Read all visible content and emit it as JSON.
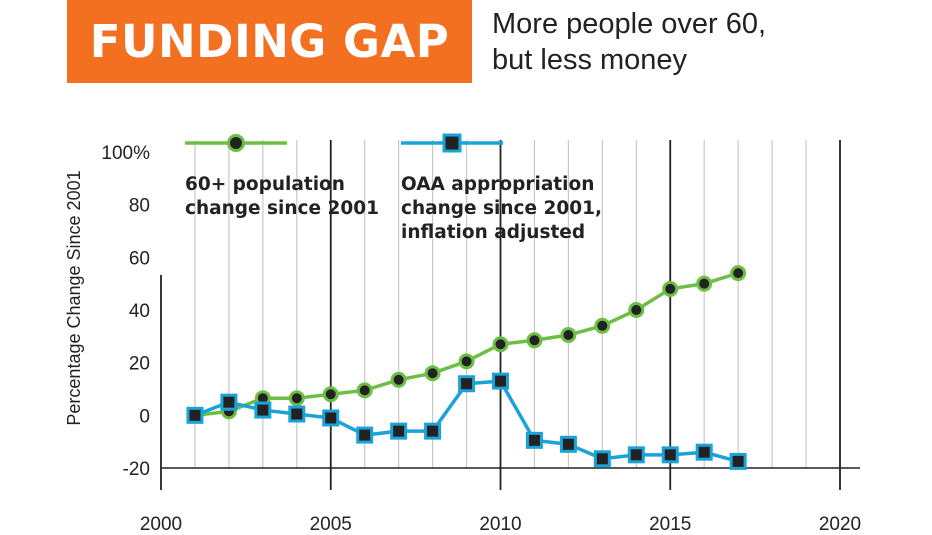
{
  "header": {
    "badge": "FUNDING GAP",
    "subtitle_line1": "More people over 60,",
    "subtitle_line2": "but less money",
    "badge_color": "#f37021"
  },
  "chart_data": {
    "type": "line",
    "title": "",
    "xlabel": "",
    "ylabel": "Percentage Change Since 2001",
    "xlim": [
      2000,
      2020
    ],
    "ylim": [
      -20,
      100
    ],
    "xticks": [
      "2000",
      "2005",
      "2010",
      "2015",
      "2020"
    ],
    "yticks": [
      "100%",
      "80",
      "60",
      "40",
      "20",
      "0",
      "-20"
    ],
    "grid": true,
    "legend_position": "top-left",
    "series": [
      {
        "name": "60+ population change since 2001",
        "color": "#6cbf44",
        "marker": "circle",
        "x": [
          2001,
          2002,
          2003,
          2004,
          2005,
          2006,
          2007,
          2008,
          2009,
          2010,
          2011,
          2012,
          2013,
          2014,
          2015,
          2016,
          2017
        ],
        "values": [
          0,
          1.5,
          6.5,
          6.5,
          8,
          9.5,
          13.5,
          16,
          20.5,
          27,
          28.5,
          30.5,
          34,
          40,
          48,
          50,
          54
        ]
      },
      {
        "name": "OAA appropriation change since 2001, inflation adjusted",
        "color": "#1aa3d9",
        "marker": "square",
        "x": [
          2001,
          2002,
          2003,
          2004,
          2005,
          2006,
          2007,
          2008,
          2009,
          2010,
          2011,
          2012,
          2013,
          2014,
          2015,
          2016,
          2017
        ],
        "values": [
          0,
          5,
          2,
          0.5,
          -1,
          -7.5,
          -6,
          -6,
          12,
          13,
          -9.5,
          -11,
          -16.5,
          -15,
          -15,
          -14,
          -17.5
        ]
      }
    ],
    "legend": [
      {
        "line1": "60+ population",
        "line2": "change since 2001",
        "line3": ""
      },
      {
        "line1": "OAA appropriation",
        "line2": "change since 2001,",
        "line3": "inflation adjusted"
      }
    ]
  }
}
